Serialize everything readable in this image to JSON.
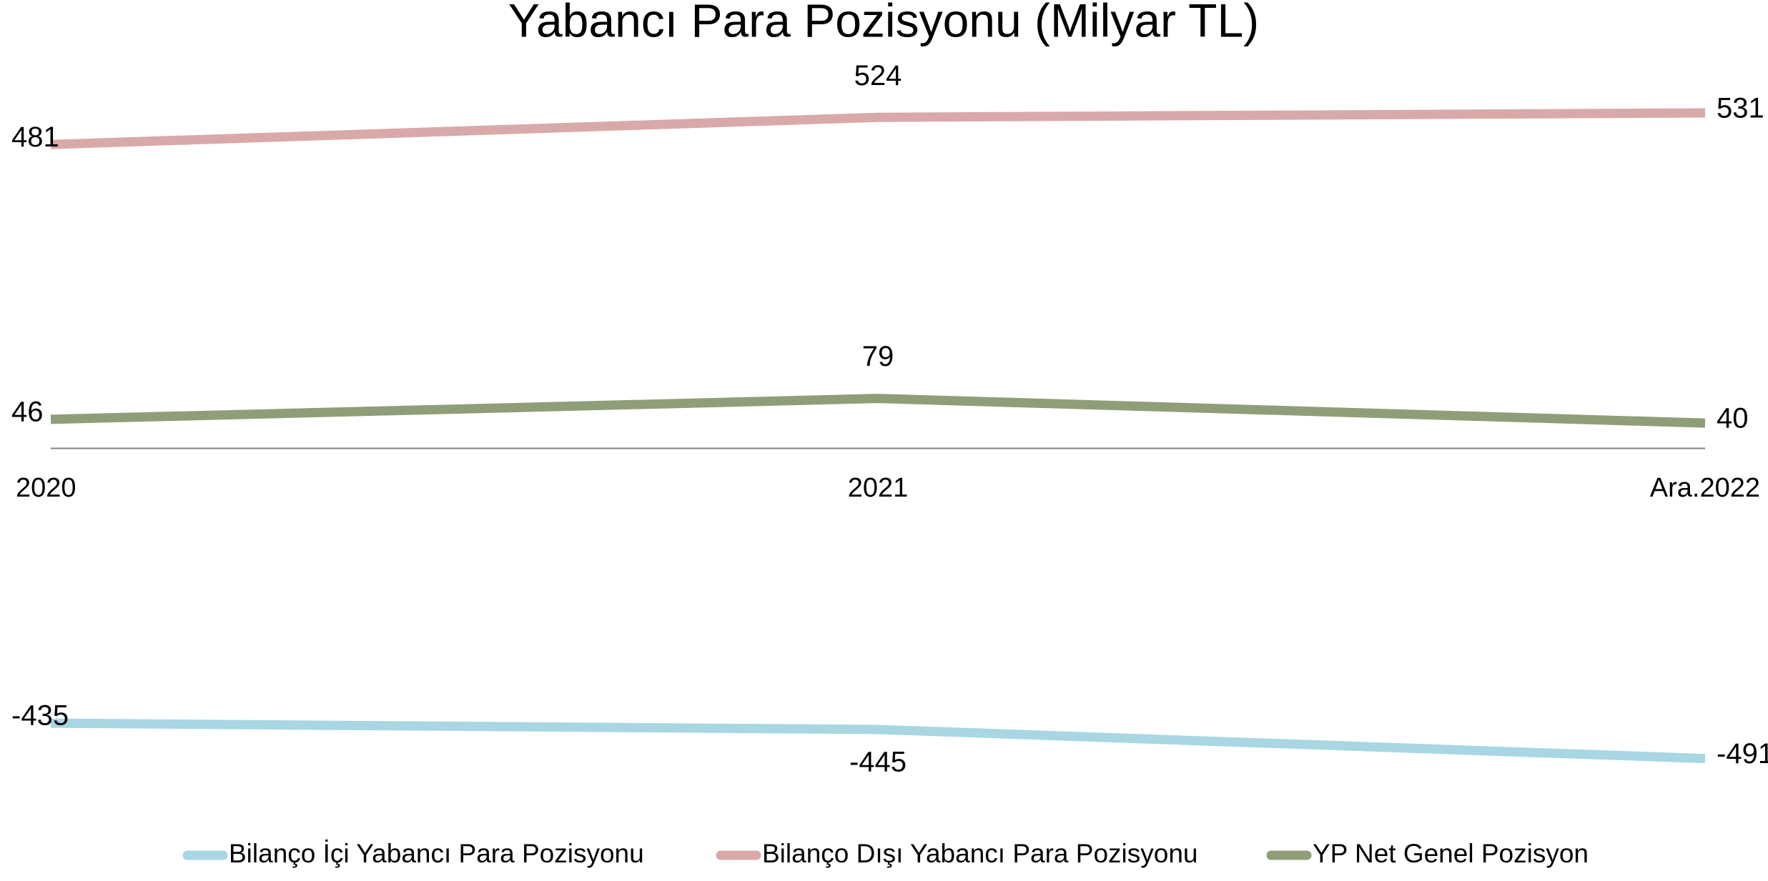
{
  "chart_data": {
    "type": "line",
    "title": "Yabancı Para Pozisyonu (Milyar TL)",
    "categories": [
      "2020",
      "2021",
      "Ara.2022"
    ],
    "series": [
      {
        "name": "Bilanço İçi Yabancı Para Pozisyonu",
        "color": "#a8d6e3",
        "values": [
          -435,
          -445,
          -491
        ]
      },
      {
        "name": "Bilanço Dışı Yabancı Para Pozisyonu",
        "color": "#d9a9a9",
        "values": [
          481,
          524,
          531
        ]
      },
      {
        "name": "YP Net Genel Pozisyon",
        "color": "#8f9e78",
        "values": [
          46,
          79,
          40
        ]
      }
    ],
    "ylim": [
      -600,
      600
    ],
    "grid": false,
    "legend": "bottom"
  }
}
